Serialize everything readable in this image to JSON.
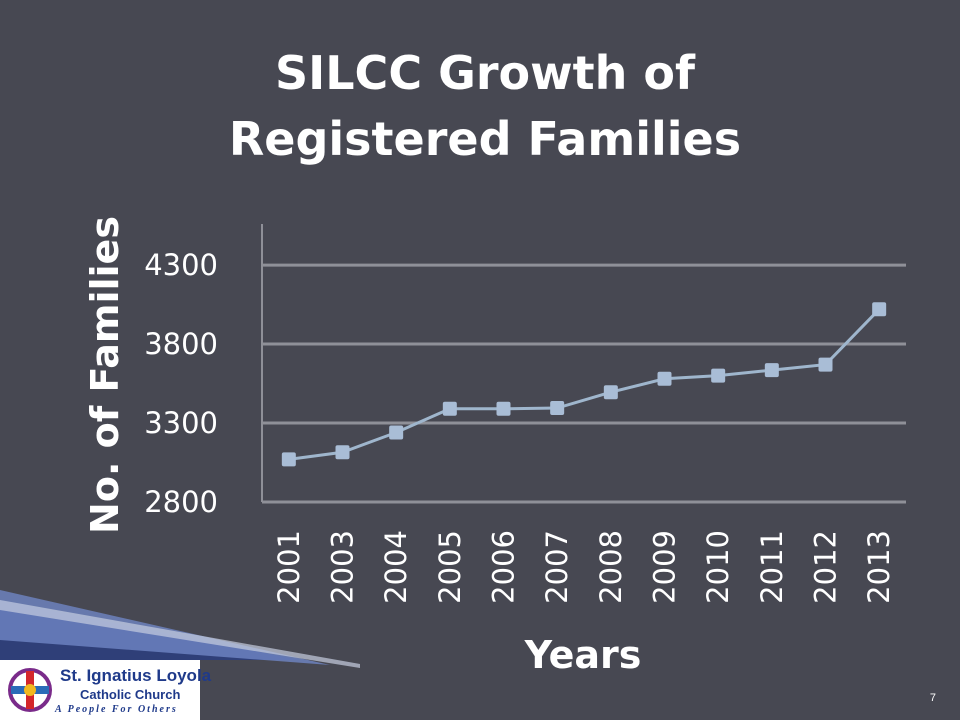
{
  "slide": {
    "title_line1": "SILCC Growth of",
    "title_line2": "Registered  Families",
    "page_number": "7"
  },
  "logo": {
    "name": "St. Ignatius Loyola",
    "subtitle": "Catholic Church",
    "tagline": "A People For Others",
    "icon": "church-cross-logo-icon"
  },
  "colors": {
    "background": "#474852",
    "line": "#9fb6cd",
    "marker": "#a9bdd6",
    "gridline": "#8f9098",
    "text": "#ffffff"
  },
  "chart_data": {
    "type": "line",
    "title": "",
    "xlabel": "Years",
    "ylabel": "No. of Families",
    "categories": [
      "2001",
      "2003",
      "2004",
      "2005",
      "2006",
      "2007",
      "2008",
      "2009",
      "2010",
      "2011",
      "2012",
      "2013"
    ],
    "series": [
      {
        "values": [
          3070,
          3115,
          3240,
          3390,
          3390,
          3395,
          3495,
          3580,
          3600,
          3635,
          3670,
          4020
        ]
      }
    ],
    "ylim": [
      2800,
      4560
    ],
    "yticks": [
      2800,
      3300,
      3800,
      4300
    ],
    "grid": true,
    "legend": "none"
  }
}
